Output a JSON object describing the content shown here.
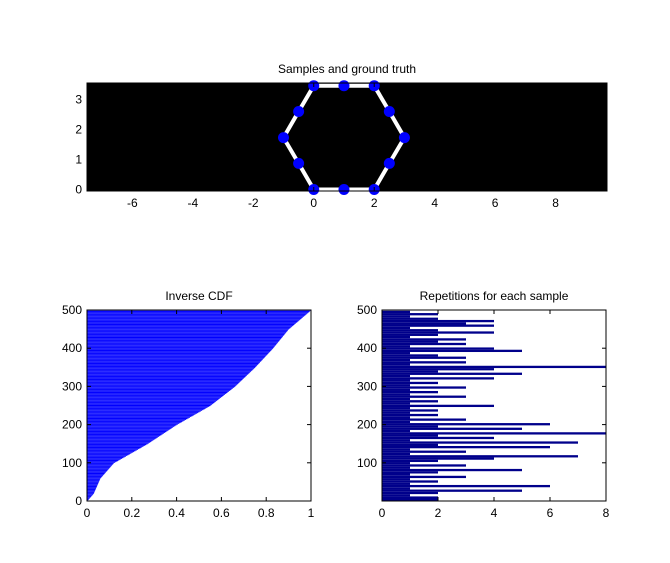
{
  "chart_data": [
    {
      "type": "scatter",
      "title": "Samples and ground truth",
      "xlabel": "",
      "ylabel": "",
      "xlim": [
        -7.5,
        9.7
      ],
      "ylim": [
        -0.05,
        3.55
      ],
      "xticks": [
        -6,
        -4,
        -2,
        0,
        2,
        4,
        6,
        8
      ],
      "yticks": [
        0,
        1,
        2,
        3
      ],
      "background": "#000000",
      "marker_color": "#0000ff",
      "line_color": "#ffffff",
      "ground_truth": [
        {
          "x": 0.0,
          "y": 0.0
        },
        {
          "x": 1.0,
          "y": 0.0
        },
        {
          "x": 2.0,
          "y": 0.0
        },
        {
          "x": 2.5,
          "y": 0.87
        },
        {
          "x": 3.0,
          "y": 1.73
        },
        {
          "x": 2.5,
          "y": 2.6
        },
        {
          "x": 2.0,
          "y": 3.46
        },
        {
          "x": 1.0,
          "y": 3.46
        },
        {
          "x": 0.0,
          "y": 3.46
        },
        {
          "x": -0.5,
          "y": 2.6
        },
        {
          "x": -1.0,
          "y": 1.73
        },
        {
          "x": -0.5,
          "y": 0.87
        }
      ],
      "samples": [
        {
          "x": 0.0,
          "y": 0.0
        },
        {
          "x": 1.0,
          "y": 0.0
        },
        {
          "x": 2.0,
          "y": 0.0
        },
        {
          "x": 2.5,
          "y": 0.87
        },
        {
          "x": 3.0,
          "y": 1.73
        },
        {
          "x": 2.5,
          "y": 2.6
        },
        {
          "x": 2.0,
          "y": 3.46
        },
        {
          "x": 1.0,
          "y": 3.46
        },
        {
          "x": 0.0,
          "y": 3.46
        },
        {
          "x": -0.5,
          "y": 2.6
        },
        {
          "x": -1.0,
          "y": 1.73
        },
        {
          "x": -0.5,
          "y": 0.87
        }
      ]
    },
    {
      "type": "bar",
      "orientation": "horizontal",
      "title": "Inverse CDF",
      "xlabel": "",
      "ylabel": "",
      "xlim": [
        0,
        1
      ],
      "ylim": [
        0,
        500
      ],
      "xticks": [
        0,
        0.2,
        0.4,
        0.6,
        0.8,
        1
      ],
      "yticks": [
        0,
        100,
        200,
        300,
        400,
        500
      ],
      "bar_color": "#0000ff",
      "n_samples": 500,
      "cdf_points": [
        {
          "y": 0,
          "x": 0.0
        },
        {
          "y": 20,
          "x": 0.03
        },
        {
          "y": 60,
          "x": 0.06
        },
        {
          "y": 100,
          "x": 0.12
        },
        {
          "y": 150,
          "x": 0.27
        },
        {
          "y": 200,
          "x": 0.4
        },
        {
          "y": 250,
          "x": 0.55
        },
        {
          "y": 300,
          "x": 0.66
        },
        {
          "y": 350,
          "x": 0.75
        },
        {
          "y": 400,
          "x": 0.83
        },
        {
          "y": 450,
          "x": 0.9
        },
        {
          "y": 500,
          "x": 1.0
        }
      ]
    },
    {
      "type": "bar",
      "orientation": "horizontal",
      "title": "Repetitions for each sample",
      "xlabel": "",
      "ylabel": "",
      "xlim": [
        0,
        8
      ],
      "ylim": [
        0,
        500
      ],
      "xticks": [
        0,
        2,
        4,
        6,
        8
      ],
      "yticks": [
        100,
        200,
        300,
        400,
        500
      ],
      "bar_color": "#00008b",
      "repetitions": [
        {
          "y": 12,
          "value": 2
        },
        {
          "y": 18,
          "value": 1
        },
        {
          "y": 24,
          "value": 2
        },
        {
          "y": 30,
          "value": 5
        },
        {
          "y": 36,
          "value": 1
        },
        {
          "y": 42,
          "value": 6
        },
        {
          "y": 48,
          "value": 1
        },
        {
          "y": 54,
          "value": 2
        },
        {
          "y": 60,
          "value": 1
        },
        {
          "y": 66,
          "value": 3
        },
        {
          "y": 72,
          "value": 1
        },
        {
          "y": 78,
          "value": 2
        },
        {
          "y": 84,
          "value": 5
        },
        {
          "y": 90,
          "value": 1
        },
        {
          "y": 96,
          "value": 3
        },
        {
          "y": 102,
          "value": 1
        },
        {
          "y": 108,
          "value": 2
        },
        {
          "y": 114,
          "value": 4
        },
        {
          "y": 120,
          "value": 7
        },
        {
          "y": 126,
          "value": 1
        },
        {
          "y": 132,
          "value": 3
        },
        {
          "y": 138,
          "value": 1
        },
        {
          "y": 144,
          "value": 6
        },
        {
          "y": 150,
          "value": 2
        },
        {
          "y": 156,
          "value": 7
        },
        {
          "y": 162,
          "value": 1
        },
        {
          "y": 168,
          "value": 4
        },
        {
          "y": 174,
          "value": 2
        },
        {
          "y": 180,
          "value": 8
        },
        {
          "y": 186,
          "value": 1
        },
        {
          "y": 192,
          "value": 5
        },
        {
          "y": 198,
          "value": 2
        },
        {
          "y": 204,
          "value": 6
        },
        {
          "y": 210,
          "value": 1
        },
        {
          "y": 216,
          "value": 3
        },
        {
          "y": 222,
          "value": 1
        },
        {
          "y": 228,
          "value": 2
        },
        {
          "y": 234,
          "value": 1
        },
        {
          "y": 240,
          "value": 2
        },
        {
          "y": 246,
          "value": 1
        },
        {
          "y": 252,
          "value": 4
        },
        {
          "y": 258,
          "value": 1
        },
        {
          "y": 264,
          "value": 2
        },
        {
          "y": 270,
          "value": 1
        },
        {
          "y": 276,
          "value": 3
        },
        {
          "y": 282,
          "value": 1
        },
        {
          "y": 288,
          "value": 2
        },
        {
          "y": 294,
          "value": 1
        },
        {
          "y": 300,
          "value": 3
        },
        {
          "y": 306,
          "value": 1
        },
        {
          "y": 312,
          "value": 2
        },
        {
          "y": 318,
          "value": 1
        },
        {
          "y": 324,
          "value": 4
        },
        {
          "y": 330,
          "value": 1
        },
        {
          "y": 336,
          "value": 5
        },
        {
          "y": 342,
          "value": 2
        },
        {
          "y": 348,
          "value": 4
        },
        {
          "y": 354,
          "value": 8
        },
        {
          "y": 360,
          "value": 1
        },
        {
          "y": 366,
          "value": 3
        },
        {
          "y": 372,
          "value": 1
        },
        {
          "y": 378,
          "value": 3
        },
        {
          "y": 384,
          "value": 2
        },
        {
          "y": 390,
          "value": 1
        },
        {
          "y": 396,
          "value": 5
        },
        {
          "y": 402,
          "value": 4
        },
        {
          "y": 408,
          "value": 1
        },
        {
          "y": 414,
          "value": 3
        },
        {
          "y": 420,
          "value": 2
        },
        {
          "y": 426,
          "value": 3
        },
        {
          "y": 432,
          "value": 1
        },
        {
          "y": 438,
          "value": 2
        },
        {
          "y": 444,
          "value": 4
        },
        {
          "y": 450,
          "value": 2
        },
        {
          "y": 456,
          "value": 1
        },
        {
          "y": 462,
          "value": 4
        },
        {
          "y": 468,
          "value": 3
        },
        {
          "y": 474,
          "value": 4
        },
        {
          "y": 480,
          "value": 2
        },
        {
          "y": 486,
          "value": 1
        },
        {
          "y": 492,
          "value": 2
        },
        {
          "y": 498,
          "value": 1
        }
      ]
    }
  ]
}
